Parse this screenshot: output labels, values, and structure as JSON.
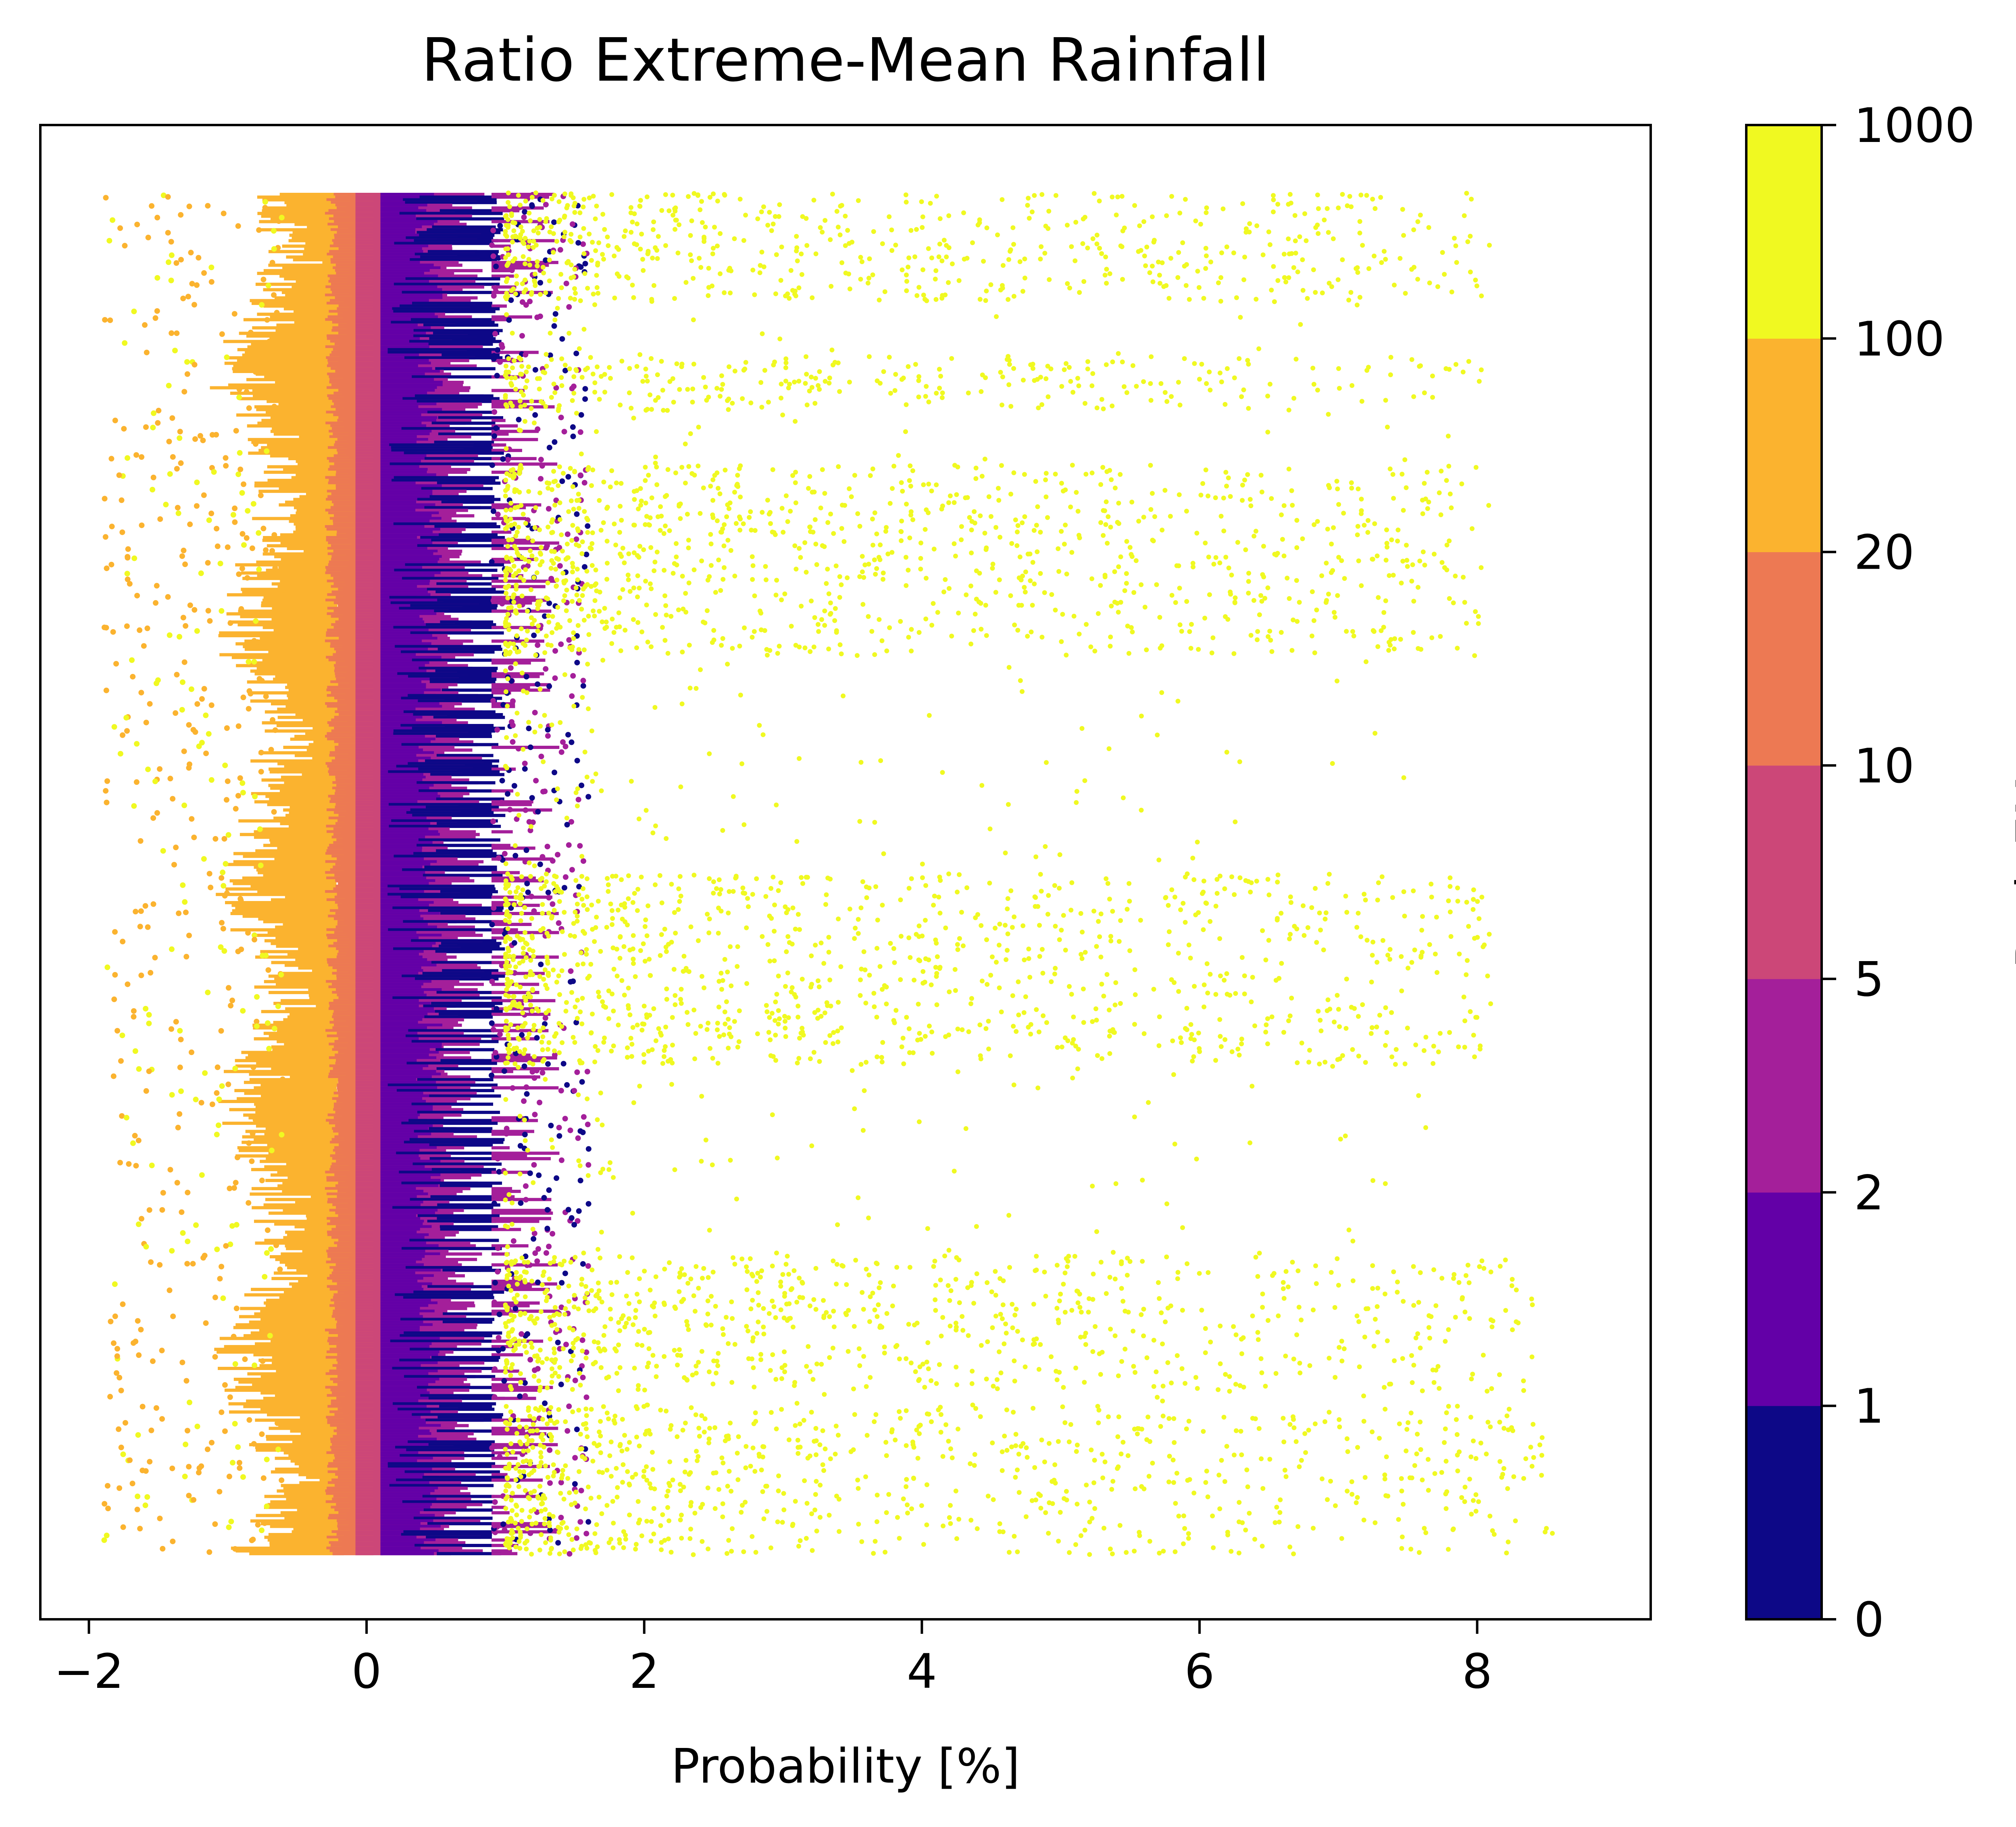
{
  "chart_data": {
    "type": "scatter",
    "title": "Ratio Extreme-Mean Rainfall",
    "xlabel": "Probability [%]",
    "ylabel": "",
    "xlim": [
      -2.35,
      9.25
    ],
    "xticks": [
      -2,
      0,
      2,
      4,
      6,
      8
    ],
    "xtick_labels": [
      "−2",
      "0",
      "2",
      "4",
      "6",
      "8"
    ],
    "y_axis_visible": false,
    "rows": 500,
    "grid": false,
    "colorbar": {
      "label": "RatioEM",
      "boundaries": [
        "0",
        "1",
        "2",
        "5",
        "10",
        "20",
        "100",
        "1000"
      ],
      "colors": [
        "#0d0887",
        "#6300a7",
        "#a41f9a",
        "#cc4778",
        "#ed7953",
        "#fbb32f",
        "#f0f921"
      ]
    },
    "series": [
      {
        "range": "0-1",
        "color": "#0d0887",
        "x_min": 0.1,
        "x_max": 1.0,
        "spread": 0.9
      },
      {
        "range": "1-2",
        "color": "#6300a7",
        "x_min": 0.1,
        "x_max": 0.6,
        "spread": 0.8
      },
      {
        "range": "2-5",
        "color": "#a41f9a",
        "x_min": 0.05,
        "x_max": 1.6,
        "spread": 0.75
      },
      {
        "range": "5-10",
        "color": "#cc4778",
        "x_min": -0.3,
        "x_max": 0.9,
        "spread": 0.7
      },
      {
        "range": "10-20",
        "color": "#ed7953",
        "x_min": -0.6,
        "x_max": 0.1,
        "spread": 0.6
      },
      {
        "range": "20-100",
        "color": "#fbb32f",
        "x_min": -1.9,
        "x_max": 0.1,
        "spread": 0.6
      },
      {
        "range": "100-1000",
        "color": "#f0f921",
        "x_min": -1.9,
        "x_max": 8.7,
        "spread": 7.0
      }
    ],
    "outlier_bands": [
      {
        "row_from": 0,
        "row_to": 40,
        "x_max": 8.1
      },
      {
        "row_from": 60,
        "row_to": 80,
        "x_max": 8.1
      },
      {
        "row_from": 100,
        "row_to": 170,
        "x_max": 8.1
      },
      {
        "row_from": 250,
        "row_to": 320,
        "x_max": 8.1
      },
      {
        "row_from": 390,
        "row_to": 440,
        "x_max": 8.4
      },
      {
        "row_from": 445,
        "row_to": 500,
        "x_max": 8.6
      }
    ]
  }
}
